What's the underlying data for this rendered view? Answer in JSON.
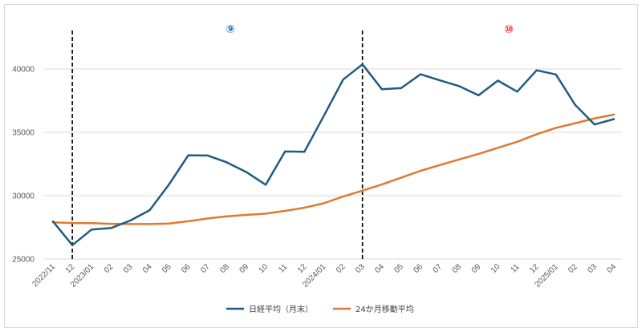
{
  "chart_data": {
    "type": "line",
    "categories": [
      "2022/11",
      "12",
      "2023/01",
      "02",
      "03",
      "04",
      "05",
      "06",
      "07",
      "08",
      "09",
      "10",
      "11",
      "12",
      "2024/01",
      "02",
      "03",
      "04",
      "05",
      "06",
      "07",
      "08",
      "09",
      "10",
      "11",
      "12",
      "2025/01",
      "02",
      "03",
      "04"
    ],
    "series": [
      {
        "name": "日経平均（月末）",
        "color": "#1f5c82",
        "values": [
          27968,
          26095,
          27327,
          27446,
          28041,
          28856,
          30888,
          33189,
          33172,
          32619,
          31858,
          30859,
          33487,
          33464,
          36287,
          39166,
          40369,
          38406,
          38488,
          39583,
          39102,
          38648,
          37920,
          39081,
          38208,
          39895,
          39572,
          37156,
          35618,
          36045
        ]
      },
      {
        "name": "24か月移動平均",
        "color": "#e07a2f",
        "values": [
          27900,
          27840,
          27830,
          27780,
          27760,
          27760,
          27800,
          27980,
          28200,
          28370,
          28480,
          28580,
          28800,
          29050,
          29400,
          29930,
          30400,
          30880,
          31420,
          31960,
          32420,
          32860,
          33300,
          33780,
          34250,
          34850,
          35350,
          35720,
          36100,
          36400
        ]
      }
    ],
    "ylim": [
      25000,
      42000
    ],
    "yticks": [
      "25000",
      "30000",
      "35000",
      "40000"
    ],
    "grid": true,
    "legend_position": "bottom",
    "vlines": [
      {
        "category_index": 1,
        "label": "⑨",
        "label_color": "#1f7fbf"
      },
      {
        "category_index": 16,
        "label": "⑩",
        "label_color": "#e0302b"
      }
    ]
  }
}
